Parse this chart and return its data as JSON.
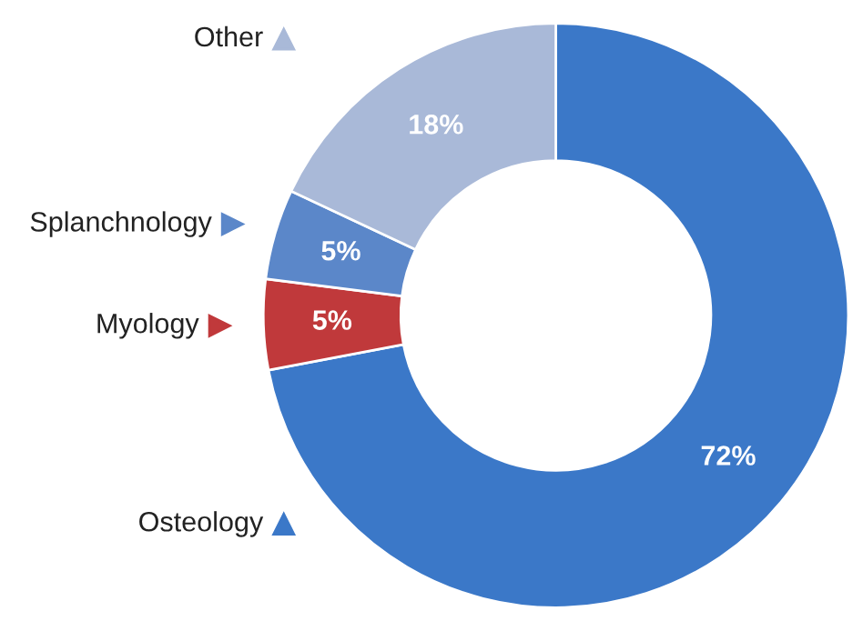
{
  "chart_data": {
    "type": "donut",
    "categories": [
      "Osteology",
      "Myology",
      "Splanchnology",
      "Other"
    ],
    "values": [
      72,
      5,
      5,
      18
    ],
    "colors": [
      "#3b78c8",
      "#c0393b",
      "#5b87c9",
      "#a9b9d8"
    ],
    "value_labels": [
      "72%",
      "5%",
      "5%",
      "18%"
    ],
    "legend": "left"
  }
}
